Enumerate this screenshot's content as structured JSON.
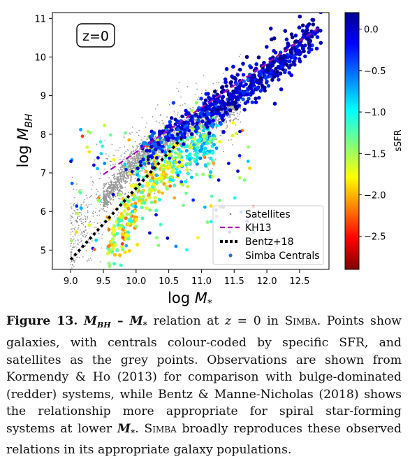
{
  "chart_data": {
    "type": "scatter",
    "xlabel": "log M*",
    "ylabel": "log M_BH",
    "xlim": [
      8.72,
      12.95
    ],
    "ylim": [
      4.5,
      11.15
    ],
    "x_ticks": [
      "9.0",
      "9.5",
      "10.0",
      "10.5",
      "11.0",
      "11.5",
      "12.0",
      "12.5"
    ],
    "y_ticks": [
      "5",
      "6",
      "7",
      "8",
      "9",
      "10",
      "11"
    ],
    "annotation": "z=0",
    "colorbar": {
      "label": "sSFR",
      "range": [
        -2.9,
        0.2
      ],
      "ticks": [
        "0.0",
        "−0.5",
        "−1.0",
        "−1.5",
        "−2.0",
        "−2.5"
      ],
      "colormap": "jet_r"
    },
    "legend": {
      "position": "lower-right",
      "entries": [
        "Satellites",
        "KH13",
        "Bentz+18",
        "Simba Centrals"
      ]
    },
    "series": [
      {
        "name": "KH13",
        "style": "dashed line",
        "color": "#b000b0",
        "x": [
          9.5,
          12.8
        ],
        "y": [
          6.96,
          10.76
        ]
      },
      {
        "name": "Bentz+18",
        "style": "dotted line",
        "color": "#000000",
        "x": [
          9.0,
          10.7
        ],
        "y": [
          4.75,
          7.9
        ]
      },
      {
        "name": "Satellites",
        "style": "points",
        "color": "#7f7f7f",
        "trend": {
          "x": [
            9.5,
            10.0,
            10.5,
            11.0,
            11.5,
            12.0
          ],
          "y": [
            6.3,
            7.3,
            7.9,
            8.3,
            8.7,
            9.1
          ]
        }
      },
      {
        "name": "Simba Centrals",
        "style": "points coloured by sSFR",
        "trend_quenched": {
          "x": [
            9.8,
            10.3,
            10.8,
            11.3,
            11.8,
            12.4,
            12.7
          ],
          "y": [
            7.0,
            7.8,
            8.3,
            8.75,
            9.3,
            10.1,
            10.6
          ]
        },
        "trend_starforming": {
          "x": [
            9.6,
            10.0,
            10.4,
            10.8,
            11.2
          ],
          "y": [
            5.0,
            6.3,
            7.1,
            7.6,
            7.9
          ]
        }
      }
    ]
  },
  "caption": {
    "label": "Figure 13.",
    "text": "M_BH – M* relation at z = 0 in SIMBA. Points show galaxies, with centrals colour-coded by specific SFR, and satellites as the grey points. Observations are shown from Kormendy & Ho (2013) for comparison with bulge-dominated (redder) systems, while Bentz & Manne-Nicholas (2018) shows the relationship more appropriate for spiral star-forming systems at lower M*. SIMBA broadly reproduces these observed relations in its appropriate galaxy populations.",
    "p1": "M",
    "p1sub": "BH",
    "p2": " – ",
    "p3": "M",
    "p3sub": "*",
    "p4": " relation at ",
    "p5": "z",
    "p6": " = 0 in ",
    "p7": "Simba",
    "p8": ". Points show galaxies, with centrals colour-coded by specific SFR, and satellites as the grey points. Observations are shown from Kormendy & Ho (2013) for comparison with bulge-dominated (redder) systems, while Bentz & Manne-Nicholas (2018) shows the relationship more appropriate for spiral star-forming systems at lower ",
    "p9": "M",
    "p9sub": "*",
    "p10": ". ",
    "p11": "Simba",
    "p12": " broadly reproduces these observed relations in its appropriate galaxy populations."
  }
}
